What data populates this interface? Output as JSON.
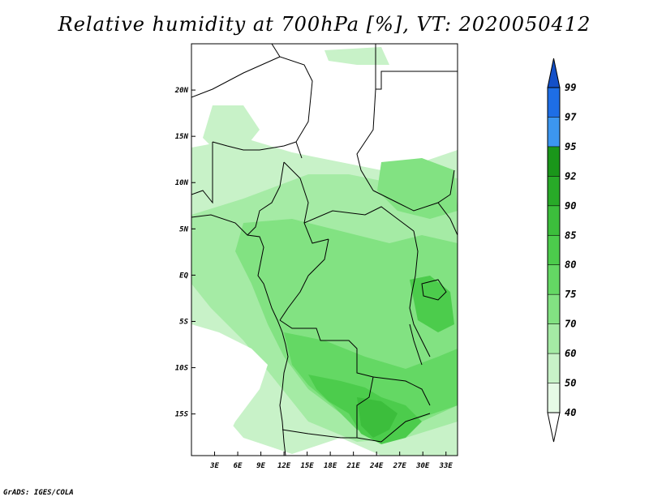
{
  "title": "Relative humidity at 700hPa [%], VT: 2020050412",
  "credit": "GrADS: IGES/COLA",
  "map": {
    "lon_range": [
      0,
      34.5
    ],
    "lat_range": [
      -19.5,
      25
    ],
    "x_ticks": [
      {
        "lon": 3,
        "label": "3E"
      },
      {
        "lon": 6,
        "label": "6E"
      },
      {
        "lon": 9,
        "label": "9E"
      },
      {
        "lon": 12,
        "label": "12E"
      },
      {
        "lon": 15,
        "label": "15E"
      },
      {
        "lon": 18,
        "label": "18E"
      },
      {
        "lon": 21,
        "label": "21E"
      },
      {
        "lon": 24,
        "label": "24E"
      },
      {
        "lon": 27,
        "label": "27E"
      },
      {
        "lon": 30,
        "label": "30E"
      },
      {
        "lon": 33,
        "label": "33E"
      }
    ],
    "y_ticks": [
      {
        "lat": 20,
        "label": "20N"
      },
      {
        "lat": 15,
        "label": "15N"
      },
      {
        "lat": 10,
        "label": "10N"
      },
      {
        "lat": 5,
        "label": "5N"
      },
      {
        "lat": 0,
        "label": "EQ"
      },
      {
        "lat": -5,
        "label": "5S"
      },
      {
        "lat": -10,
        "label": "10S"
      },
      {
        "lat": -15,
        "label": "15S"
      }
    ]
  },
  "colorbar": {
    "levels": [
      {
        "label": "40",
        "color": "#e6fae6"
      },
      {
        "label": "50",
        "color": "#c8f2c8"
      },
      {
        "label": "60",
        "color": "#a5eba5"
      },
      {
        "label": "70",
        "color": "#82e282"
      },
      {
        "label": "75",
        "color": "#64d864"
      },
      {
        "label": "80",
        "color": "#4ccc4c"
      },
      {
        "label": "85",
        "color": "#3cbe3c"
      },
      {
        "label": "90",
        "color": "#28aa28"
      },
      {
        "label": "92",
        "color": "#1a961a"
      },
      {
        "label": "95",
        "color": "#3c96f0"
      },
      {
        "label": "97",
        "color": "#1e6ee6"
      },
      {
        "label": "99",
        "color": "#1450c8"
      }
    ],
    "low_color": "#ffffff"
  }
}
